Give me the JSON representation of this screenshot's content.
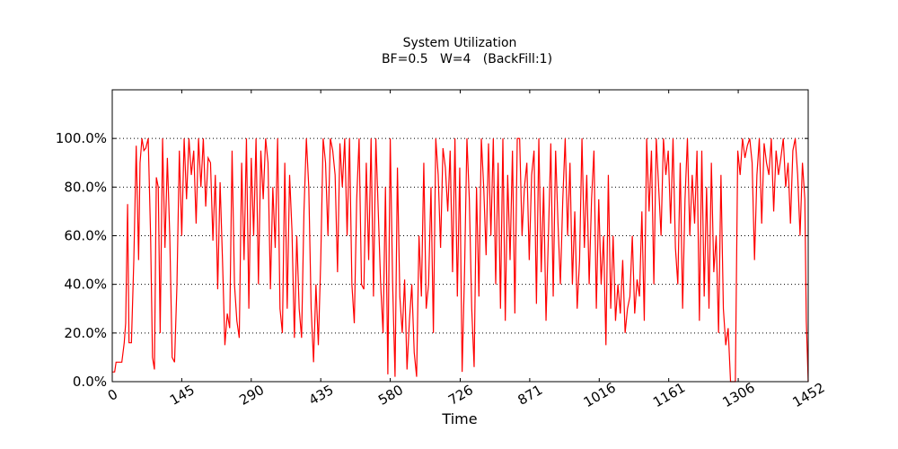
{
  "chart_data": {
    "type": "line",
    "title": "System Utilization",
    "subtitle": "BF=0.5   W=4   (BackFill:1)",
    "x_label": "Time",
    "x": [
      0,
      5,
      8,
      20,
      25,
      28,
      32,
      35,
      40,
      45,
      50,
      55,
      58,
      62,
      66,
      70,
      75,
      80,
      84,
      88,
      92,
      96,
      100,
      105,
      110,
      115,
      120,
      125,
      130,
      135,
      140,
      145,
      150,
      155,
      160,
      165,
      170,
      175,
      180,
      185,
      190,
      195,
      200,
      205,
      210,
      215,
      220,
      225,
      230,
      235,
      240,
      245,
      250,
      255,
      260,
      265,
      270,
      275,
      280,
      285,
      290,
      295,
      300,
      305,
      310,
      315,
      320,
      325,
      330,
      335,
      340,
      345,
      350,
      355,
      360,
      365,
      370,
      375,
      380,
      385,
      390,
      395,
      400,
      405,
      410,
      415,
      420,
      425,
      430,
      435,
      440,
      445,
      450,
      455,
      460,
      465,
      470,
      475,
      480,
      485,
      490,
      495,
      500,
      505,
      510,
      515,
      520,
      525,
      530,
      535,
      540,
      545,
      550,
      555,
      560,
      565,
      570,
      575,
      580,
      585,
      590,
      595,
      600,
      605,
      610,
      615,
      620,
      625,
      630,
      635,
      640,
      645,
      650,
      655,
      660,
      665,
      670,
      675,
      680,
      685,
      690,
      695,
      700,
      705,
      710,
      715,
      720,
      725,
      730,
      735,
      740,
      745,
      750,
      755,
      760,
      765,
      770,
      775,
      780,
      785,
      790,
      795,
      800,
      805,
      810,
      815,
      820,
      825,
      830,
      835,
      840,
      845,
      850,
      855,
      860,
      865,
      870,
      875,
      880,
      885,
      890,
      895,
      900,
      905,
      910,
      915,
      920,
      925,
      930,
      935,
      940,
      945,
      950,
      955,
      960,
      965,
      970,
      975,
      980,
      985,
      990,
      995,
      1000,
      1005,
      1010,
      1015,
      1020,
      1025,
      1030,
      1035,
      1040,
      1045,
      1050,
      1055,
      1060,
      1065,
      1070,
      1075,
      1080,
      1085,
      1090,
      1095,
      1100,
      1105,
      1110,
      1115,
      1120,
      1125,
      1130,
      1135,
      1140,
      1145,
      1150,
      1155,
      1160,
      1165,
      1170,
      1175,
      1180,
      1185,
      1190,
      1195,
      1200,
      1205,
      1210,
      1215,
      1220,
      1225,
      1230,
      1235,
      1240,
      1245,
      1250,
      1255,
      1260,
      1265,
      1270,
      1275,
      1280,
      1285,
      1290,
      1300,
      1305,
      1310,
      1315,
      1320,
      1325,
      1330,
      1335,
      1340,
      1345,
      1350,
      1355,
      1360,
      1365,
      1370,
      1375,
      1380,
      1385,
      1390,
      1395,
      1400,
      1405,
      1410,
      1415,
      1420,
      1425,
      1430,
      1435,
      1440,
      1445,
      1448,
      1452
    ],
    "series": [
      {
        "name": "Utilization",
        "color": "#ff0000",
        "values": [
          4,
          4,
          8,
          8,
          16,
          24,
          73,
          16,
          16,
          50,
          97,
          50,
          90,
          100,
          95,
          96,
          100,
          60,
          10,
          5,
          84,
          80,
          20,
          100,
          55,
          92,
          60,
          10,
          8,
          40,
          95,
          60,
          100,
          75,
          100,
          85,
          95,
          65,
          100,
          80,
          100,
          72,
          92,
          90,
          58,
          85,
          38,
          82,
          50,
          15,
          28,
          22,
          95,
          40,
          25,
          18,
          90,
          50,
          100,
          30,
          92,
          60,
          100,
          40,
          95,
          75,
          100,
          90,
          38,
          80,
          55,
          100,
          30,
          20,
          90,
          30,
          85,
          62,
          18,
          60,
          30,
          18,
          70,
          100,
          80,
          30,
          8,
          40,
          15,
          50,
          100,
          90,
          60,
          100,
          95,
          85,
          45,
          98,
          80,
          100,
          60,
          100,
          40,
          24,
          75,
          100,
          40,
          38,
          90,
          50,
          100,
          35,
          100,
          70,
          40,
          20,
          80,
          3,
          100,
          40,
          2,
          88,
          35,
          20,
          42,
          5,
          25,
          40,
          12,
          2,
          60,
          35,
          90,
          30,
          40,
          80,
          20,
          100,
          85,
          55,
          96,
          88,
          70,
          95,
          45,
          100,
          35,
          88,
          4,
          45,
          100,
          75,
          30,
          6,
          80,
          35,
          100,
          80,
          52,
          98,
          60,
          100,
          40,
          90,
          30,
          100,
          25,
          85,
          50,
          95,
          28,
          100,
          100,
          60,
          80,
          90,
          50,
          85,
          95,
          32,
          100,
          45,
          80,
          25,
          60,
          98,
          35,
          95,
          65,
          40,
          75,
          100,
          60,
          90,
          40,
          70,
          30,
          50,
          100,
          55,
          85,
          40,
          75,
          95,
          30,
          75,
          40,
          60,
          15,
          85,
          30,
          60,
          25,
          40,
          28,
          50,
          20,
          30,
          35,
          60,
          28,
          42,
          35,
          70,
          25,
          100,
          70,
          95,
          40,
          100,
          80,
          60,
          100,
          85,
          95,
          65,
          100,
          55,
          40,
          90,
          30,
          75,
          100,
          60,
          85,
          65,
          95,
          25,
          95,
          35,
          80,
          30,
          90,
          45,
          60,
          20,
          85,
          30,
          15,
          22,
          0,
          0,
          95,
          85,
          100,
          92,
          97,
          100,
          90,
          50,
          85,
          100,
          65,
          98,
          90,
          85,
          100,
          70,
          95,
          85,
          92,
          100,
          80,
          90,
          65,
          95,
          100,
          85,
          60,
          90,
          75,
          25,
          0
        ]
      }
    ],
    "xlim": [
      0,
      1452
    ],
    "xticks": [
      0,
      145,
      290,
      435,
      580,
      726,
      871,
      1016,
      1161,
      1306,
      1452
    ],
    "ylim": [
      0,
      120
    ],
    "yticks": [
      {
        "value": 0,
        "label": "0.0%"
      },
      {
        "value": 20,
        "label": "20.0%"
      },
      {
        "value": 40,
        "label": "40.0%"
      },
      {
        "value": 60,
        "label": "60.0%"
      },
      {
        "value": 80,
        "label": "80.0%"
      },
      {
        "value": 100,
        "label": "100.0%"
      }
    ],
    "grid": true
  }
}
